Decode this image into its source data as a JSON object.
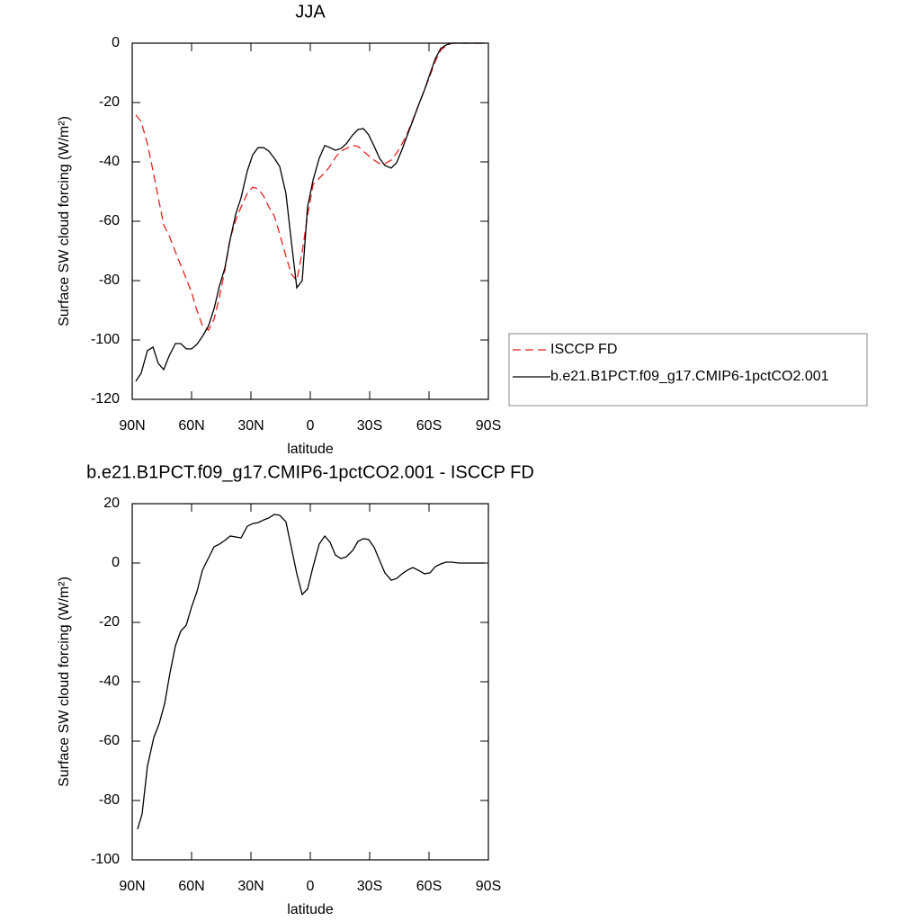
{
  "chart_data": [
    {
      "type": "line",
      "title": "JJA",
      "x_label": "latitude",
      "y_label": "Surface SW cloud forcing (W/m²)",
      "xlim": [
        90,
        -90
      ],
      "ylim": [
        -120,
        0
      ],
      "xticks": [
        {
          "value": 90,
          "label": "90N"
        },
        {
          "value": 60,
          "label": "60N"
        },
        {
          "value": 30,
          "label": "30N"
        },
        0,
        {
          "value": -30,
          "label": "30S"
        },
        {
          "value": -60,
          "label": "60S"
        },
        {
          "value": -90,
          "label": "90S"
        }
      ],
      "yticks": [
        0,
        -20,
        -40,
        -60,
        -80,
        -100,
        -120
      ],
      "grid": false,
      "legend": "right",
      "x": [
        88.2,
        85.5,
        82.3,
        79.5,
        76.8,
        74.1,
        71.4,
        68.2,
        65.5,
        62.7,
        60,
        57.3,
        54.5,
        51.4,
        48.6,
        45.9,
        43.2,
        40.5,
        37.7,
        35,
        31.8,
        29.1,
        26.4,
        23.6,
        20.9,
        18.2,
        15.5,
        12.3,
        9.5,
        6.8,
        4.1,
        1.4,
        -1.4,
        -4.5,
        -7.3,
        -10,
        -12.7,
        -15.5,
        -18.2,
        -21.4,
        -24.1,
        -26.8,
        -29.5,
        -32.3,
        -35,
        -37.7,
        -40.9,
        -43.6,
        -46.4,
        -49.1,
        -51.8,
        -54.5,
        -57.7,
        -60.5,
        -63.2,
        -65.9,
        -68.6,
        -71.4,
        -75,
        -80,
        -85,
        -88.2
      ],
      "series": [
        {
          "name": "ISCCP FD",
          "color": "#e8201e",
          "dashed": true,
          "values": [
            -24.2,
            -26.4,
            -33.9,
            -43,
            -52.1,
            -61.2,
            -64.8,
            -70.3,
            -74.8,
            -79.4,
            -83.9,
            -90,
            -95.2,
            -96.7,
            -93,
            -85.5,
            -76.4,
            -65.8,
            -59.7,
            -55.2,
            -50.6,
            -48.5,
            -49.1,
            -51.5,
            -55.2,
            -58.2,
            -64.2,
            -71.8,
            -77.9,
            -80,
            -70.3,
            -58.2,
            -47.6,
            -45.5,
            -43.6,
            -41.5,
            -38.5,
            -36.4,
            -35.5,
            -34.5,
            -34.8,
            -36.4,
            -37.9,
            -39.4,
            -40.6,
            -40.6,
            -39.4,
            -37,
            -33.9,
            -30.3,
            -25.8,
            -21.2,
            -15.8,
            -10.9,
            -6.1,
            -2.4,
            -0.9,
            0,
            0,
            0,
            0,
            0
          ]
        },
        {
          "name": "b.e21.B1PCT.f09_g17.CMIP6-1pctCO2.001",
          "color": "#000000",
          "dashed": false,
          "values": [
            -113.9,
            -111.2,
            -103.6,
            -102.4,
            -107.9,
            -110,
            -105.5,
            -101.2,
            -101.2,
            -103,
            -103,
            -101.5,
            -98.8,
            -95.2,
            -89.4,
            -81.8,
            -75.8,
            -66.1,
            -57.6,
            -52.1,
            -43,
            -37.6,
            -35.2,
            -35.2,
            -36.4,
            -38.8,
            -41.5,
            -50.6,
            -67.3,
            -82.4,
            -80,
            -55.2,
            -46.1,
            -38.8,
            -34.5,
            -35.2,
            -36.1,
            -35.5,
            -33.9,
            -30.9,
            -29.1,
            -28.8,
            -30.9,
            -34.8,
            -38.8,
            -41.2,
            -42.1,
            -40.3,
            -35.8,
            -30.9,
            -26.1,
            -21.2,
            -15.8,
            -10.3,
            -5.2,
            -1.8,
            -0.6,
            0,
            0,
            0,
            0,
            0
          ]
        }
      ]
    },
    {
      "type": "line",
      "title": "b.e21.B1PCT.f09_g17.CMIP6-1pctCO2.001 - ISCCP FD",
      "x_label": "latitude",
      "y_label": "Surface SW cloud forcing (W/m²)",
      "xlim": [
        90,
        -90
      ],
      "ylim": [
        -100,
        20
      ],
      "xticks": [
        {
          "value": 90,
          "label": "90N"
        },
        {
          "value": 60,
          "label": "60N"
        },
        {
          "value": 30,
          "label": "30N"
        },
        0,
        {
          "value": -30,
          "label": "30S"
        },
        {
          "value": -60,
          "label": "60S"
        },
        {
          "value": -90,
          "label": "90S"
        }
      ],
      "yticks": [
        20,
        0,
        -20,
        -40,
        -60,
        -80,
        -100
      ],
      "grid": false,
      "color": "#000000",
      "x": [
        87.3,
        85,
        82.3,
        79.1,
        76.4,
        73.6,
        70.9,
        68.2,
        65.5,
        62.7,
        60,
        57.3,
        54.5,
        51.4,
        48.6,
        45.9,
        43.2,
        40.5,
        37.7,
        35,
        31.8,
        29.1,
        26.4,
        23.6,
        20.9,
        18.2,
        15.5,
        12.3,
        9.5,
        6.8,
        4.1,
        1.4,
        -1.4,
        -4.5,
        -7.3,
        -10,
        -12.7,
        -15.5,
        -18.2,
        -21.4,
        -24.1,
        -26.8,
        -29.5,
        -32.3,
        -35,
        -37.7,
        -40.9,
        -43.6,
        -46.4,
        -49.1,
        -51.8,
        -54.5,
        -57.7,
        -60.5,
        -63.2,
        -65.9,
        -68.6,
        -71.4,
        -75,
        -80,
        -85,
        -88.2
      ],
      "values": [
        -89.7,
        -84.5,
        -68.5,
        -58.8,
        -54.2,
        -47.3,
        -37,
        -27.9,
        -23,
        -20.9,
        -14.8,
        -9.7,
        -2.4,
        1.8,
        5.5,
        6.4,
        7.6,
        9.1,
        8.8,
        8.5,
        12.4,
        13.3,
        13.6,
        14.5,
        15.2,
        16.4,
        16.1,
        13.9,
        5,
        -3.6,
        -10.6,
        -8.8,
        -1.2,
        6.4,
        9.1,
        7,
        2.7,
        1.5,
        2.1,
        4.2,
        7.3,
        8.2,
        7.9,
        5.2,
        0.9,
        -3.3,
        -5.8,
        -5.2,
        -3.6,
        -2.4,
        -1.5,
        -2.4,
        -3.6,
        -3.3,
        -1.2,
        -0.3,
        0.3,
        0.3,
        0,
        0,
        0,
        0
      ]
    }
  ]
}
